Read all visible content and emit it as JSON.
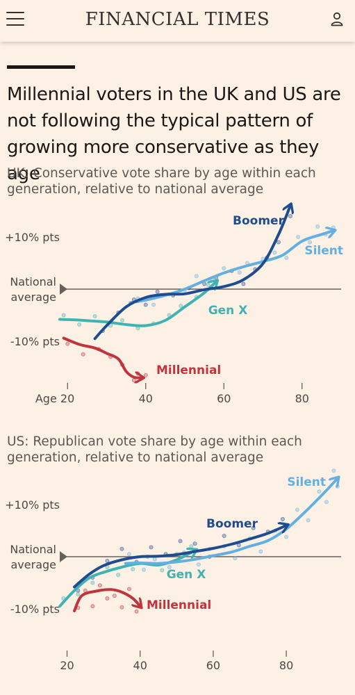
{
  "header": {
    "brand": "FINANCIAL TIMES",
    "menu_icon": "hamburger-menu-icon",
    "user_icon": "user-account-icon"
  },
  "headline": "Millennial voters in the UK and US are not following the typical pattern of growing more conservative as they age",
  "colors": {
    "background": "#fdf1e5",
    "boomer": "#1f4b8f",
    "silent": "#63b0e0",
    "genx": "#3fb3b2",
    "millennial": "#c2343d",
    "baseline": "#66605c"
  },
  "chart_data": [
    {
      "id": "uk",
      "type": "line",
      "subtitle": "UK: Conservative vote share by age within each generation, relative to national average",
      "xlabel": "Age",
      "xlim": [
        18,
        90
      ],
      "ylim": [
        -17,
        17
      ],
      "x_ticks": [
        {
          "value": 20,
          "label": "Age 20"
        },
        {
          "value": 40,
          "label": "40"
        },
        {
          "value": 60,
          "label": "60"
        },
        {
          "value": 80,
          "label": "80"
        }
      ],
      "y_ticks": [
        {
          "value": 10,
          "label": "+10% pts"
        },
        {
          "value": -10,
          "label": "-10% pts"
        }
      ],
      "baseline_label": [
        "National",
        "average"
      ],
      "series": [
        {
          "name": "Silent",
          "color_key": "silent",
          "x": [
            36,
            40,
            45,
            50,
            55,
            60,
            65,
            70,
            75,
            80,
            85,
            88
          ],
          "y": [
            -2.6,
            -2.1,
            -1.2,
            0.0,
            1.6,
            3.1,
            4.3,
            5.3,
            6.5,
            9.2,
            10.5,
            11.2
          ],
          "scatter_x": [
            38,
            42,
            46,
            50,
            53,
            57,
            60,
            64,
            66,
            70,
            73,
            76,
            79,
            82,
            84,
            86,
            88
          ],
          "scatter_y": [
            -1.8,
            -3.0,
            -1.0,
            -0.2,
            2.5,
            1.8,
            4.0,
            3.2,
            5.0,
            5.8,
            7.0,
            6.0,
            10.0,
            9.0,
            12.0,
            10.5,
            11.8
          ]
        },
        {
          "name": "Boomer",
          "color_key": "boomer",
          "x": [
            27,
            30,
            35,
            40,
            45,
            50,
            55,
            60,
            65,
            70,
            74,
            77
          ],
          "y": [
            -9.5,
            -7.0,
            -3.4,
            -1.6,
            -1.0,
            -0.9,
            -0.1,
            0.5,
            1.8,
            4.9,
            10.5,
            16.0
          ],
          "scatter_x": [
            29,
            33,
            37,
            40,
            43,
            47,
            51,
            55,
            58,
            62,
            65,
            68,
            71,
            74,
            77
          ],
          "scatter_y": [
            -8.0,
            -4.5,
            -2.0,
            -3.0,
            -0.5,
            -1.2,
            0.2,
            1.0,
            2.2,
            3.5,
            1.0,
            3.8,
            6.0,
            9.0,
            14.0
          ]
        },
        {
          "name": "Gen X",
          "color_key": "genx",
          "x": [
            18,
            22,
            26,
            30,
            35,
            40,
            45,
            50,
            55,
            58
          ],
          "y": [
            -5.8,
            -5.9,
            -6.1,
            -6.3,
            -6.8,
            -7.0,
            -6.0,
            -3.4,
            -0.7,
            1.4
          ],
          "scatter_x": [
            19,
            23,
            27,
            31,
            34,
            38,
            42,
            46,
            49,
            53,
            56
          ],
          "scatter_y": [
            -5.0,
            -6.8,
            -5.2,
            -7.0,
            -6.0,
            -7.5,
            -6.6,
            -5.0,
            -3.2,
            -1.5,
            0.8
          ]
        },
        {
          "name": "Millennial",
          "color_key": "millennial",
          "x": [
            19,
            23,
            27,
            30,
            33,
            35,
            37,
            39
          ],
          "y": [
            -9.4,
            -10.6,
            -11.3,
            -12.3,
            -13.4,
            -15.8,
            -16.9,
            -17.0
          ],
          "scatter_x": [
            20,
            24,
            28,
            31,
            34,
            37,
            38,
            40
          ],
          "scatter_y": [
            -10.5,
            -12.5,
            -11.5,
            -13.0,
            -14.5,
            -17.5,
            -16.2,
            -16.5
          ]
        }
      ]
    },
    {
      "id": "us",
      "type": "line",
      "subtitle": "US: Republican vote share by age within each generation, relative to national average",
      "xlabel": "",
      "xlim": [
        18,
        95
      ],
      "ylim": [
        -11,
        17
      ],
      "x_ticks": [
        {
          "value": 20,
          "label": "20"
        },
        {
          "value": 40,
          "label": "40"
        },
        {
          "value": 60,
          "label": "60"
        },
        {
          "value": 80,
          "label": "80"
        }
      ],
      "y_ticks": [
        {
          "value": 10,
          "label": "+10% pts"
        },
        {
          "value": -10,
          "label": "-10% pts"
        }
      ],
      "baseline_label": [
        "National",
        "average"
      ],
      "series": [
        {
          "name": "Silent",
          "color_key": "silent",
          "x": [
            36,
            40,
            45,
            50,
            55,
            60,
            65,
            70,
            75,
            80,
            85,
            90,
            94
          ],
          "y": [
            -1.3,
            -1.2,
            -1.3,
            -1.0,
            -0.5,
            0.2,
            0.9,
            2.0,
            3.1,
            5.3,
            8.5,
            12.0,
            15.0
          ],
          "scatter_x": [
            37,
            41,
            44,
            48,
            52,
            56,
            59,
            63,
            66,
            70,
            73,
            77,
            80,
            83,
            86,
            89,
            91,
            93,
            94
          ],
          "scatter_y": [
            0.5,
            -2.5,
            -0.5,
            -2.0,
            0.8,
            -1.5,
            1.5,
            2.0,
            -0.3,
            3.5,
            1.0,
            5.0,
            3.8,
            9.0,
            7.0,
            12.5,
            10.5,
            16.5,
            13.5
          ]
        },
        {
          "name": "Boomer",
          "color_key": "boomer",
          "x": [
            22,
            26,
            30,
            35,
            40,
            45,
            50,
            55,
            60,
            65,
            70,
            75,
            80
          ],
          "y": [
            -5.8,
            -3.4,
            -1.7,
            -0.6,
            0.0,
            0.1,
            0.4,
            1.0,
            1.6,
            2.4,
            3.4,
            4.5,
            6.0
          ],
          "scatter_x": [
            23,
            27,
            31,
            35,
            39,
            43,
            47,
            51,
            55,
            59,
            63,
            67,
            71,
            75,
            79
          ],
          "scatter_y": [
            -6.5,
            -4.0,
            -0.8,
            1.5,
            -1.0,
            1.8,
            0.5,
            3.0,
            2.5,
            0.0,
            4.0,
            2.2,
            5.5,
            4.8,
            7.2
          ]
        },
        {
          "name": "Gen X",
          "color_key": "genx",
          "x": [
            18,
            22,
            26,
            30,
            35,
            40,
            45,
            50,
            55
          ],
          "y": [
            -9.5,
            -6.5,
            -4.1,
            -3.0,
            -2.0,
            -1.3,
            -1.6,
            -0.6,
            1.2
          ],
          "scatter_x": [
            19,
            23,
            27,
            31,
            34,
            38,
            42,
            46,
            50,
            54
          ],
          "scatter_y": [
            -8.0,
            -7.2,
            -5.0,
            -2.0,
            -3.5,
            -2.4,
            0.0,
            -2.6,
            0.5,
            2.0
          ]
        },
        {
          "name": "Millennial",
          "color_key": "millennial",
          "x": [
            22,
            24,
            28,
            32,
            35,
            38,
            40
          ],
          "y": [
            -10.4,
            -7.5,
            -6.6,
            -6.3,
            -6.8,
            -8.0,
            -9.5
          ],
          "scatter_x": [
            23,
            25,
            27,
            29,
            31,
            33,
            35,
            37,
            39
          ],
          "scatter_y": [
            -9.8,
            -6.5,
            -9.5,
            -5.5,
            -8.0,
            -7.5,
            -9.7,
            -6.2,
            -10.5
          ]
        }
      ]
    }
  ]
}
